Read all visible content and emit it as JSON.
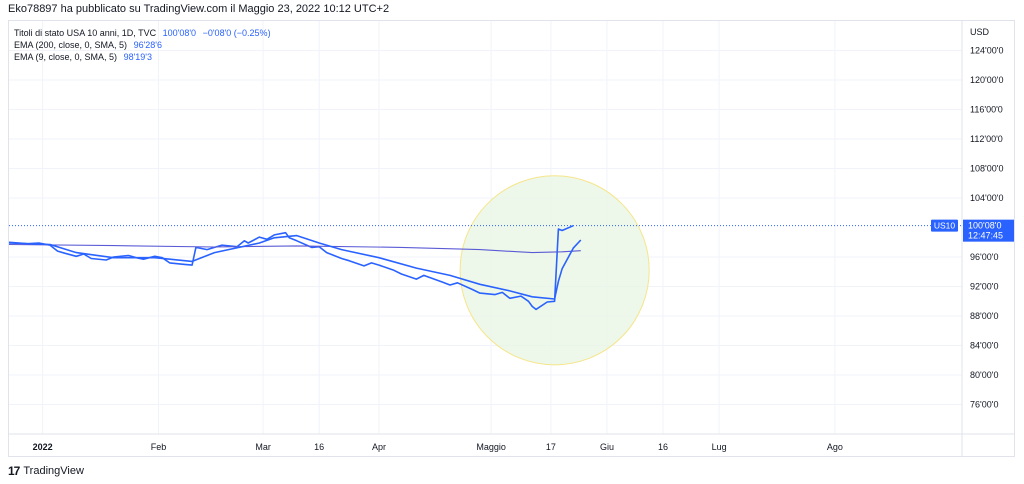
{
  "header": {
    "publish_line": "Eko78897 ha pubblicato su TradingView.com il Maggio 23, 2022 10:12 UTC+2"
  },
  "legend": {
    "symbol": "Titoli di stato USA 10 anni, 1D, TVC",
    "price": "100'08'0",
    "change": "−0'08'0 (−0.25%)",
    "ema200_label": "EMA (200, close, 0, SMA, 5)",
    "ema200_value": "96'28'6",
    "ema9_label": "EMA (9, close, 0, SMA, 5)",
    "ema9_value": "98'19'3"
  },
  "price_axis": {
    "currency": "USD"
  },
  "price_tag": {
    "symbol": "US10",
    "price": "100'08'0",
    "countdown": "12:47:45"
  },
  "footer": {
    "brand": "TradingView"
  },
  "colors": {
    "price_line": "#2962ff",
    "ema200": "#5b5bd6",
    "ema9": "#2962ff",
    "highlight_fill": "#e8f5e3",
    "highlight_stroke": "#f5e58a"
  },
  "chart_data": {
    "type": "line",
    "ylim": [
      72,
      128
    ],
    "y_ticks": [
      {
        "label": "124'00'0",
        "value": 124
      },
      {
        "label": "120'00'0",
        "value": 120
      },
      {
        "label": "116'00'0",
        "value": 116
      },
      {
        "label": "112'00'0",
        "value": 112
      },
      {
        "label": "108'00'0",
        "value": 108
      },
      {
        "label": "104'00'0",
        "value": 104
      },
      {
        "label": "96'00'0",
        "value": 96
      },
      {
        "label": "92'00'0",
        "value": 92
      },
      {
        "label": "88'00'0",
        "value": 88
      },
      {
        "label": "84'00'0",
        "value": 84
      },
      {
        "label": "80'00'0",
        "value": 80
      },
      {
        "label": "76'00'0",
        "value": 76
      }
    ],
    "x_range": [
      "2021-12-23",
      "2022-09-04"
    ],
    "x_ticks": [
      {
        "label": "2022",
        "date": "2022-01-01"
      },
      {
        "label": "Feb",
        "date": "2022-02-01"
      },
      {
        "label": "Mar",
        "date": "2022-03-01"
      },
      {
        "label": "16",
        "date": "2022-03-16"
      },
      {
        "label": "Apr",
        "date": "2022-04-01"
      },
      {
        "label": "Maggio",
        "date": "2022-05-01"
      },
      {
        "label": "17",
        "date": "2022-05-17"
      },
      {
        "label": "Giu",
        "date": "2022-06-01"
      },
      {
        "label": "16",
        "date": "2022-06-16"
      },
      {
        "label": "Lug",
        "date": "2022-07-01"
      },
      {
        "label": "Ago",
        "date": "2022-08-01"
      }
    ],
    "last_price": 100.25,
    "highlight_circle": {
      "center_date": "2022-05-18",
      "center_price": 94.2,
      "radius_days": 25.3
    },
    "series": [
      {
        "name": "Titoli di stato USA 10 anni",
        "points": [
          [
            "2021-12-23",
            98.0
          ],
          [
            "2021-12-28",
            97.8
          ],
          [
            "2021-12-31",
            97.9
          ],
          [
            "2022-01-03",
            97.6
          ],
          [
            "2022-01-05",
            96.8
          ],
          [
            "2022-01-07",
            96.5
          ],
          [
            "2022-01-10",
            96.1
          ],
          [
            "2022-01-12",
            96.4
          ],
          [
            "2022-01-14",
            95.8
          ],
          [
            "2022-01-18",
            95.6
          ],
          [
            "2022-01-20",
            96.0
          ],
          [
            "2022-01-24",
            96.2
          ],
          [
            "2022-01-26",
            95.9
          ],
          [
            "2022-01-28",
            95.7
          ],
          [
            "2022-01-31",
            96.1
          ],
          [
            "2022-02-02",
            95.9
          ],
          [
            "2022-02-04",
            95.2
          ],
          [
            "2022-02-08",
            95.0
          ],
          [
            "2022-02-10",
            94.9
          ],
          [
            "2022-02-11",
            97.3
          ],
          [
            "2022-02-14",
            97.0
          ],
          [
            "2022-02-16",
            97.3
          ],
          [
            "2022-02-18",
            97.6
          ],
          [
            "2022-02-22",
            97.4
          ],
          [
            "2022-02-24",
            98.2
          ],
          [
            "2022-02-25",
            97.9
          ],
          [
            "2022-02-28",
            98.7
          ],
          [
            "2022-03-02",
            98.4
          ],
          [
            "2022-03-04",
            99.0
          ],
          [
            "2022-03-07",
            99.3
          ],
          [
            "2022-03-08",
            98.6
          ],
          [
            "2022-03-10",
            98.2
          ],
          [
            "2022-03-14",
            97.3
          ],
          [
            "2022-03-16",
            97.4
          ],
          [
            "2022-03-18",
            96.6
          ],
          [
            "2022-03-22",
            95.8
          ],
          [
            "2022-03-24",
            95.5
          ],
          [
            "2022-03-28",
            94.8
          ],
          [
            "2022-03-30",
            95.2
          ],
          [
            "2022-04-01",
            94.9
          ],
          [
            "2022-04-05",
            94.2
          ],
          [
            "2022-04-07",
            93.7
          ],
          [
            "2022-04-11",
            93.0
          ],
          [
            "2022-04-13",
            93.5
          ],
          [
            "2022-04-18",
            92.6
          ],
          [
            "2022-04-20",
            92.2
          ],
          [
            "2022-04-22",
            92.5
          ],
          [
            "2022-04-26",
            91.6
          ],
          [
            "2022-04-28",
            91.1
          ],
          [
            "2022-05-02",
            90.9
          ],
          [
            "2022-05-04",
            91.2
          ],
          [
            "2022-05-06",
            90.4
          ],
          [
            "2022-05-09",
            90.7
          ],
          [
            "2022-05-11",
            90.0
          ],
          [
            "2022-05-12",
            89.3
          ],
          [
            "2022-05-13",
            88.9
          ],
          [
            "2022-05-16",
            89.9
          ],
          [
            "2022-05-18",
            90.0
          ],
          [
            "2022-05-19",
            99.8
          ],
          [
            "2022-05-20",
            99.6
          ],
          [
            "2022-05-23",
            100.25
          ]
        ]
      },
      {
        "name": "EMA (200, close, 0, SMA, 5)",
        "points": [
          [
            "2021-12-23",
            97.7
          ],
          [
            "2022-01-20",
            97.55
          ],
          [
            "2022-02-16",
            97.35
          ],
          [
            "2022-03-10",
            97.5
          ],
          [
            "2022-04-07",
            97.3
          ],
          [
            "2022-04-28",
            97.0
          ],
          [
            "2022-05-12",
            96.6
          ],
          [
            "2022-05-20",
            96.7
          ],
          [
            "2022-05-25",
            96.85
          ]
        ]
      },
      {
        "name": "EMA (9, close, 0, SMA, 5)",
        "points": [
          [
            "2021-12-23",
            97.9
          ],
          [
            "2022-01-03",
            97.7
          ],
          [
            "2022-01-10",
            96.6
          ],
          [
            "2022-01-20",
            95.9
          ],
          [
            "2022-01-31",
            95.9
          ],
          [
            "2022-02-10",
            95.4
          ],
          [
            "2022-02-16",
            96.6
          ],
          [
            "2022-02-28",
            97.9
          ],
          [
            "2022-03-04",
            98.6
          ],
          [
            "2022-03-10",
            98.9
          ],
          [
            "2022-03-16",
            97.9
          ],
          [
            "2022-03-22",
            97.0
          ],
          [
            "2022-04-01",
            95.9
          ],
          [
            "2022-04-11",
            94.5
          ],
          [
            "2022-04-20",
            93.5
          ],
          [
            "2022-04-28",
            92.3
          ],
          [
            "2022-05-06",
            91.4
          ],
          [
            "2022-05-12",
            90.6
          ],
          [
            "2022-05-18",
            90.3
          ],
          [
            "2022-05-19",
            92.7
          ],
          [
            "2022-05-20",
            94.4
          ],
          [
            "2022-05-23",
            97.2
          ],
          [
            "2022-05-25",
            98.3
          ]
        ]
      }
    ]
  }
}
